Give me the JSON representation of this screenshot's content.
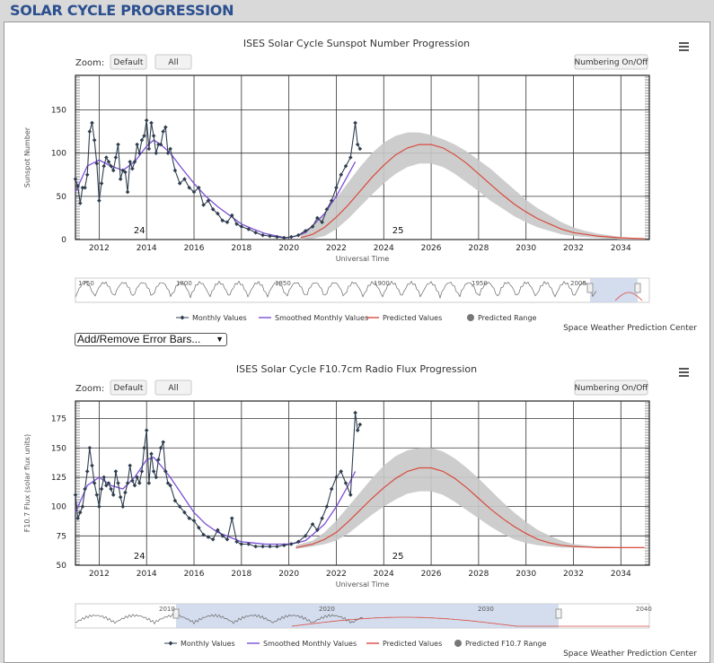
{
  "page": {
    "title": "SOLAR CYCLE PROGRESSION"
  },
  "controls": {
    "zoom_label": "Zoom:",
    "zoom_default": "Default",
    "zoom_all": "All",
    "numbering": "Numbering On/Off",
    "error_bars": "Add/Remove Error Bars...",
    "credit": "Space Weather Prediction Center"
  },
  "colors": {
    "monthly": "#2f3e4f",
    "smoothed": "#7b4fd6",
    "predicted": "#d94a3d",
    "range": "#c8c8c8",
    "navigator_mask": "#c9d5ea"
  },
  "chart_data": [
    {
      "type": "line",
      "title": "ISES Solar Cycle Sunspot Number Progression",
      "xlabel": "Universal Time",
      "ylabel": "Sunspot Number",
      "xlim": [
        2011.0,
        2035.2
      ],
      "ylim": [
        0,
        190
      ],
      "x_ticks": [
        "2012",
        "2014",
        "2016",
        "2018",
        "2020",
        "2022",
        "2024",
        "2026",
        "2028",
        "2030",
        "2032",
        "2034"
      ],
      "y_ticks": [
        0,
        50,
        100,
        150
      ],
      "cycle_labels": [
        {
          "text": "24",
          "x": 2013.7
        },
        {
          "text": "25",
          "x": 2024.6
        }
      ],
      "legend": [
        "Monthly Values",
        "Smoothed Monthly Values",
        "Predicted Values",
        "Predicted Range"
      ],
      "navigator_ticks": [
        "1750",
        "1800",
        "1850",
        "1900",
        "1950",
        "2000"
      ],
      "series": [
        {
          "name": "Monthly Values",
          "x": [
            2011.0,
            2011.1,
            2011.2,
            2011.3,
            2011.4,
            2011.5,
            2011.6,
            2011.7,
            2011.8,
            2011.9,
            2012.0,
            2012.1,
            2012.2,
            2012.3,
            2012.4,
            2012.5,
            2012.6,
            2012.7,
            2012.8,
            2012.9,
            2013.0,
            2013.1,
            2013.2,
            2013.3,
            2013.4,
            2013.5,
            2013.6,
            2013.7,
            2013.8,
            2013.9,
            2014.0,
            2014.1,
            2014.2,
            2014.3,
            2014.4,
            2014.5,
            2014.6,
            2014.7,
            2014.8,
            2014.9,
            2015.0,
            2015.2,
            2015.4,
            2015.6,
            2015.8,
            2016.0,
            2016.2,
            2016.4,
            2016.6,
            2016.8,
            2017.0,
            2017.2,
            2017.4,
            2017.6,
            2017.8,
            2018.0,
            2018.3,
            2018.6,
            2018.9,
            2019.2,
            2019.5,
            2019.8,
            2020.1,
            2020.4,
            2020.7,
            2021.0,
            2021.2,
            2021.4,
            2021.6,
            2021.8,
            2022.0,
            2022.2,
            2022.4,
            2022.6,
            2022.8,
            2022.9,
            2023.0
          ],
          "y": [
            70,
            62,
            42,
            60,
            60,
            75,
            125,
            135,
            115,
            88,
            45,
            65,
            85,
            95,
            90,
            85,
            80,
            95,
            110,
            70,
            80,
            78,
            55,
            90,
            82,
            90,
            110,
            100,
            115,
            120,
            138,
            105,
            135,
            120,
            100,
            110,
            110,
            125,
            130,
            100,
            105,
            80,
            65,
            70,
            60,
            55,
            60,
            40,
            45,
            35,
            30,
            22,
            20,
            28,
            18,
            15,
            12,
            8,
            5,
            4,
            3,
            2,
            3,
            5,
            10,
            15,
            25,
            20,
            35,
            45,
            60,
            75,
            85,
            95,
            135,
            110,
            105
          ]
        },
        {
          "name": "Smoothed Monthly Values",
          "x": [
            2011.0,
            2011.5,
            2012.0,
            2012.5,
            2013.0,
            2013.5,
            2014.0,
            2014.3,
            2014.6,
            2015.0,
            2015.5,
            2016.0,
            2016.5,
            2017.0,
            2017.5,
            2018.0,
            2018.5,
            2019.0,
            2019.5,
            2019.9,
            2020.3,
            2020.7,
            2021.0,
            2021.5,
            2022.0,
            2022.5,
            2022.8
          ],
          "y": [
            55,
            85,
            92,
            85,
            80,
            90,
            108,
            115,
            110,
            100,
            82,
            65,
            50,
            38,
            28,
            18,
            12,
            7,
            4,
            2,
            4,
            8,
            16,
            30,
            50,
            75,
            90
          ]
        },
        {
          "name": "Predicted Values",
          "x": [
            2020.5,
            2021.0,
            2021.5,
            2022.0,
            2022.5,
            2023.0,
            2023.5,
            2024.0,
            2024.5,
            2025.0,
            2025.5,
            2026.0,
            2026.5,
            2027.0,
            2027.5,
            2028.0,
            2028.5,
            2029.0,
            2029.5,
            2030.0,
            2030.5,
            2031.0,
            2031.5,
            2032.0,
            2032.5,
            2033.0,
            2033.5,
            2034.0,
            2034.5,
            2035.0
          ],
          "y": [
            2,
            6,
            14,
            26,
            40,
            56,
            72,
            86,
            98,
            106,
            110,
            110,
            106,
            98,
            88,
            76,
            64,
            52,
            41,
            32,
            24,
            18,
            12,
            8,
            6,
            4,
            3,
            2,
            1.5,
            1
          ]
        },
        {
          "name": "Predicted Range",
          "x": [
            2020.5,
            2021.0,
            2021.5,
            2022.0,
            2022.5,
            2023.0,
            2023.5,
            2024.0,
            2024.5,
            2025.0,
            2025.5,
            2026.0,
            2026.5,
            2027.0,
            2027.5,
            2028.0,
            2028.5,
            2029.0,
            2029.5,
            2030.0,
            2030.5,
            2031.0,
            2031.5,
            2032.0,
            2032.5,
            2033.0,
            2033.5,
            2034.0,
            2034.5,
            2035.0
          ],
          "low": [
            0,
            1,
            4,
            12,
            24,
            38,
            52,
            65,
            76,
            84,
            88,
            88,
            84,
            76,
            66,
            56,
            45,
            36,
            27,
            20,
            14,
            10,
            6,
            4,
            3,
            2,
            1,
            0,
            0,
            0
          ],
          "high": [
            8,
            16,
            30,
            48,
            66,
            84,
            100,
            112,
            120,
            124,
            124,
            121,
            116,
            110,
            102,
            92,
            82,
            70,
            58,
            46,
            36,
            28,
            20,
            14,
            10,
            7,
            5,
            3,
            2,
            1
          ]
        }
      ]
    },
    {
      "type": "line",
      "title": "ISES Solar Cycle F10.7cm Radio Flux Progression",
      "xlabel": "Universal Time",
      "ylabel": "F10.7 Flux (solar flux units)",
      "xlim": [
        2011.0,
        2035.2
      ],
      "ylim": [
        50,
        190
      ],
      "x_ticks": [
        "2012",
        "2014",
        "2016",
        "2018",
        "2020",
        "2022",
        "2024",
        "2026",
        "2028",
        "2030",
        "2032",
        "2034"
      ],
      "y_ticks": [
        50,
        75,
        100,
        125,
        150,
        175
      ],
      "cycle_labels": [
        {
          "text": "24",
          "x": 2013.7
        },
        {
          "text": "25",
          "x": 2024.6
        }
      ],
      "legend": [
        "Monthly Values",
        "Smoothed Monthly Values",
        "Predicted Values",
        "Predicted F10.7 Range"
      ],
      "navigator_ticks": [
        "2010",
        "2020",
        "2030",
        "2040"
      ],
      "series": [
        {
          "name": "Monthly Values",
          "x": [
            2011.0,
            2011.1,
            2011.2,
            2011.3,
            2011.4,
            2011.5,
            2011.6,
            2011.7,
            2011.8,
            2011.9,
            2012.0,
            2012.1,
            2012.2,
            2012.3,
            2012.4,
            2012.5,
            2012.6,
            2012.7,
            2012.8,
            2012.9,
            2013.0,
            2013.1,
            2013.2,
            2013.3,
            2013.4,
            2013.5,
            2013.6,
            2013.7,
            2013.8,
            2013.9,
            2014.0,
            2014.1,
            2014.2,
            2014.3,
            2014.4,
            2014.5,
            2014.6,
            2014.7,
            2014.8,
            2014.9,
            2015.0,
            2015.2,
            2015.4,
            2015.6,
            2015.8,
            2016.0,
            2016.2,
            2016.4,
            2016.6,
            2016.8,
            2017.0,
            2017.2,
            2017.4,
            2017.6,
            2017.8,
            2018.0,
            2018.3,
            2018.6,
            2018.9,
            2019.2,
            2019.5,
            2019.8,
            2020.1,
            2020.4,
            2020.7,
            2021.0,
            2021.2,
            2021.4,
            2021.6,
            2021.8,
            2022.0,
            2022.2,
            2022.4,
            2022.6,
            2022.8,
            2022.9,
            2023.0
          ],
          "y": [
            110,
            90,
            95,
            100,
            115,
            130,
            150,
            135,
            120,
            110,
            100,
            115,
            125,
            118,
            120,
            115,
            110,
            130,
            120,
            108,
            100,
            112,
            120,
            135,
            122,
            118,
            125,
            120,
            130,
            150,
            165,
            120,
            145,
            130,
            125,
            140,
            150,
            155,
            130,
            120,
            118,
            105,
            100,
            95,
            90,
            88,
            82,
            76,
            74,
            72,
            80,
            75,
            72,
            90,
            70,
            68,
            68,
            66,
            66,
            66,
            66,
            67,
            68,
            70,
            75,
            85,
            80,
            90,
            100,
            115,
            125,
            130,
            120,
            110,
            180,
            165,
            170
          ]
        },
        {
          "name": "Smoothed Monthly Values",
          "x": [
            2011.0,
            2011.5,
            2012.0,
            2012.5,
            2013.0,
            2013.5,
            2014.0,
            2014.3,
            2014.6,
            2015.0,
            2015.5,
            2016.0,
            2016.5,
            2017.0,
            2017.5,
            2018.0,
            2018.5,
            2019.0,
            2019.5,
            2019.9,
            2020.3,
            2020.7,
            2021.0,
            2021.5,
            2022.0,
            2022.5,
            2022.8
          ],
          "y": [
            95,
            118,
            125,
            118,
            115,
            125,
            140,
            142,
            135,
            125,
            110,
            95,
            85,
            78,
            74,
            70,
            69,
            68,
            68,
            68,
            69,
            71,
            76,
            85,
            100,
            118,
            130
          ]
        },
        {
          "name": "Predicted Values",
          "x": [
            2020.3,
            2021.0,
            2021.5,
            2022.0,
            2022.5,
            2023.0,
            2023.5,
            2024.0,
            2024.5,
            2025.0,
            2025.5,
            2026.0,
            2026.5,
            2027.0,
            2027.5,
            2028.0,
            2028.5,
            2029.0,
            2029.5,
            2030.0,
            2030.5,
            2031.0,
            2031.5,
            2032.0,
            2032.5,
            2033.0,
            2033.5,
            2034.0,
            2034.5,
            2035.0
          ],
          "y": [
            65,
            68,
            72,
            78,
            87,
            97,
            107,
            116,
            124,
            130,
            133,
            133,
            130,
            124,
            116,
            107,
            98,
            90,
            83,
            77,
            72,
            69,
            67,
            66,
            65.5,
            65,
            65,
            65,
            65,
            65
          ]
        },
        {
          "name": "Predicted F10.7 Range",
          "x": [
            2020.3,
            2021.0,
            2021.5,
            2022.0,
            2022.5,
            2023.0,
            2023.5,
            2024.0,
            2024.5,
            2025.0,
            2025.5,
            2026.0,
            2026.5,
            2027.0,
            2027.5,
            2028.0,
            2028.5,
            2029.0,
            2029.5,
            2030.0,
            2030.5,
            2031.0,
            2031.5,
            2032.0,
            2032.5,
            2033.0,
            2033.5,
            2034.0,
            2034.5,
            2035.0
          ],
          "low": [
            64,
            66,
            68,
            71,
            77,
            85,
            93,
            100,
            106,
            111,
            113,
            113,
            110,
            104,
            97,
            90,
            83,
            77,
            72,
            69,
            67,
            66,
            65,
            65,
            65,
            65,
            65,
            65,
            65,
            65
          ],
          "high": [
            67,
            71,
            78,
            88,
            100,
            112,
            124,
            135,
            143,
            148,
            150,
            150,
            147,
            141,
            133,
            124,
            114,
            104,
            95,
            87,
            80,
            75,
            71,
            68,
            67,
            66,
            66,
            65.5,
            65,
            65
          ]
        }
      ]
    }
  ]
}
